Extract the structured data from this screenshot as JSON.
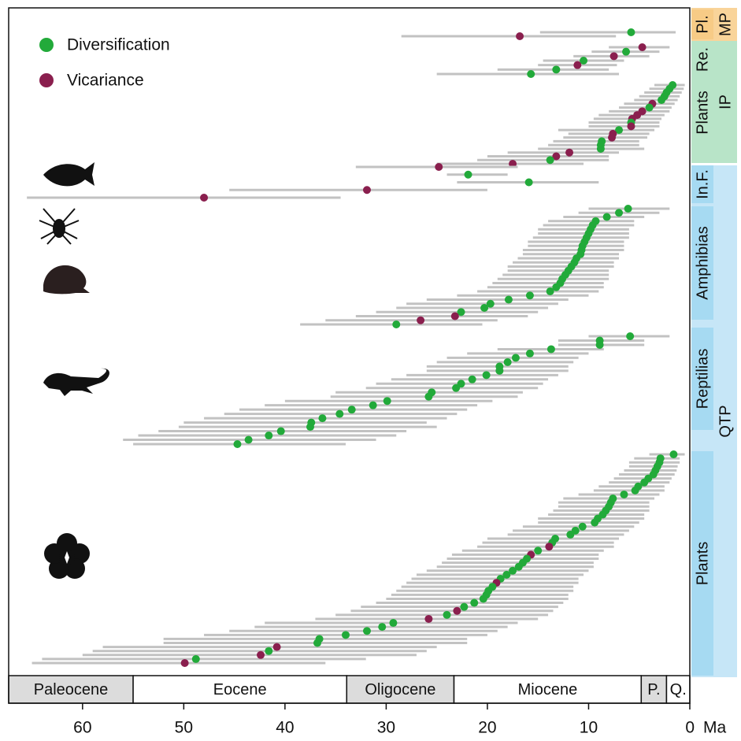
{
  "chart_data": {
    "type": "interval",
    "xlim": [
      67.3,
      0
    ],
    "xticks": [
      60,
      50,
      40,
      30,
      20,
      10,
      0
    ],
    "x_label": "Ma",
    "series": [
      {
        "name": "Diversification",
        "color": "#22aa3a"
      },
      {
        "name": "Vicariance",
        "color": "#8a1f4e"
      }
    ],
    "interval_color": "#c2c2c2",
    "periods": [
      {
        "name": "Paleocene",
        "start": 67.3,
        "end": 55,
        "color": "#dcdcdc"
      },
      {
        "name": "Eocene",
        "start": 55,
        "end": 33.9,
        "color": "#ffffff"
      },
      {
        "name": "Oligocene",
        "start": 33.9,
        "end": 23.3,
        "color": "#dcdcdc"
      },
      {
        "name": "Miocene",
        "start": 23.3,
        "end": 4.8,
        "color": "#ffffff"
      },
      {
        "name": "P.",
        "start": 4.8,
        "end": 2.3,
        "color": "#dcdcdc"
      },
      {
        "name": "Q.",
        "start": 2.3,
        "end": 0,
        "color": "#ffffff"
      }
    ],
    "regions": [
      {
        "name": "MP",
        "color": "#f9d49a"
      },
      {
        "name": "IP",
        "color": "#b8e4c8"
      },
      {
        "name": "QTP",
        "color": "#c6e6f7"
      }
    ],
    "groups": [
      {
        "name": "Pl.",
        "region": 0,
        "color": "#f7cb86",
        "x": [
          5.8,
          16.8
        ],
        "x_max": [
          14.8,
          28.5
        ],
        "x_min": [
          1.4,
          7.3
        ],
        "event": [
          0,
          1
        ]
      },
      {
        "name": "Re.",
        "region": 1,
        "color": "#b8e4c8",
        "x": [
          4.7,
          6.3,
          7.5,
          10.5,
          11.1,
          13.2,
          15.7
        ],
        "x_max": [
          8.0,
          9.7,
          11.5,
          14.5,
          15.0,
          19.0,
          25.0
        ],
        "x_min": [
          2.0,
          3.0,
          4.0,
          6.5,
          7.2,
          8.0,
          7.0
        ],
        "event": [
          1,
          0,
          1,
          0,
          1,
          0,
          0
        ]
      },
      {
        "name": "Plants",
        "region": 1,
        "color": "#b8e4c8",
        "x": [
          1.7,
          2.0,
          2.3,
          2.5,
          2.8,
          3.7,
          4.0,
          4.7,
          5.2,
          5.7,
          5.8,
          5.8,
          7.0,
          7.6,
          7.7,
          8.7,
          8.8,
          8.8,
          11.9,
          13.2,
          13.8,
          17.5
        ],
        "x_max": [
          3.5,
          4.0,
          4.5,
          5.0,
          5.5,
          6.5,
          7.0,
          8.0,
          9.0,
          9.5,
          10.0,
          10.0,
          13.0,
          12.0,
          12.5,
          13.5,
          14.0,
          15.0,
          18.0,
          20.0,
          21.0,
          25.0
        ],
        "x_min": [
          0.5,
          0.6,
          0.8,
          1.0,
          1.2,
          1.5,
          1.8,
          2.0,
          2.5,
          2.8,
          3.0,
          3.0,
          3.5,
          4.0,
          4.2,
          5.0,
          5.0,
          4.5,
          7.0,
          8.0,
          8.0,
          10.5
        ],
        "event": [
          0,
          0,
          0,
          0,
          0,
          1,
          0,
          1,
          1,
          1,
          0,
          1,
          0,
          1,
          1,
          0,
          0,
          0,
          1,
          1,
          0,
          1
        ]
      },
      {
        "name": "In.F.",
        "region": 2,
        "color": "#a6daf2",
        "x": [
          24.8,
          21.9,
          15.9,
          31.9,
          48.0
        ],
        "x_max": [
          33,
          24,
          23,
          45.5,
          65.5
        ],
        "x_min": [
          17,
          18,
          9,
          20,
          34.5
        ],
        "event": [
          1,
          0,
          0,
          1,
          1
        ]
      },
      {
        "name": "Amphibias",
        "region": 2,
        "color": "#a6daf2",
        "x": [
          6.1,
          7.0,
          8.2,
          9.3,
          9.6,
          9.8,
          10.0,
          10.2,
          10.4,
          10.6,
          10.7,
          10.8,
          11.2,
          11.4,
          11.7,
          12.0,
          12.3,
          12.6,
          12.8,
          13.2,
          13.8,
          15.8,
          17.9,
          19.7,
          20.3,
          22.6,
          23.2,
          26.6,
          29.0
        ],
        "x_max": [
          10,
          11,
          12.5,
          14,
          14.5,
          15,
          15,
          15.5,
          16,
          16,
          16.5,
          16.5,
          17,
          17.5,
          18,
          18,
          18.5,
          19,
          19.5,
          20,
          21,
          23,
          26,
          28,
          29,
          31,
          33,
          36,
          38.5
        ],
        "x_min": [
          2,
          3,
          4.5,
          5.5,
          5.5,
          6,
          6,
          6,
          6.5,
          6.5,
          6.5,
          7,
          7,
          7.5,
          7.5,
          8,
          8,
          8,
          8.5,
          8.5,
          9,
          10,
          12,
          13,
          14,
          15,
          16,
          19,
          20.5
        ],
        "event": [
          0,
          0,
          0,
          0,
          0,
          0,
          0,
          0,
          0,
          0,
          0,
          0,
          0,
          0,
          0,
          0,
          0,
          0,
          0,
          0,
          0,
          0,
          0,
          0,
          0,
          0,
          1,
          1,
          0
        ]
      },
      {
        "name": "Reptilias",
        "region": 2,
        "color": "#a6daf2",
        "x": [
          5.9,
          8.9,
          8.9,
          13.7,
          15.8,
          17.2,
          18.0,
          18.8,
          18.8,
          20.1,
          21.5,
          22.6,
          23.1,
          25.5,
          25.8,
          29.9,
          31.3,
          33.4,
          34.6,
          36.3,
          37.4,
          37.5,
          40.4,
          41.6,
          43.6,
          44.7
        ],
        "x_max": [
          10,
          13,
          13,
          19,
          22,
          24,
          25,
          26,
          26,
          28,
          29.5,
          31,
          32,
          35,
          35.5,
          40,
          42,
          44.5,
          46,
          48,
          50,
          50.5,
          52.5,
          54.5,
          56,
          55
        ],
        "x_min": [
          2,
          4.5,
          4.5,
          8.5,
          10,
          11,
          11.5,
          12,
          12,
          13,
          14,
          14.5,
          15,
          16.5,
          17,
          19.5,
          21,
          22,
          23,
          24,
          26,
          25,
          28,
          29,
          31,
          34
        ],
        "event": [
          0,
          0,
          0,
          0,
          0,
          0,
          0,
          0,
          0,
          0,
          0,
          0,
          0,
          0,
          0,
          0,
          0,
          0,
          0,
          0,
          0,
          0,
          0,
          0,
          0,
          0
        ]
      },
      {
        "name": "Plants",
        "region": 2,
        "color": "#a6daf2",
        "x": [
          1.6,
          2.9,
          3.0,
          3.2,
          3.4,
          3.6,
          4.1,
          4.5,
          5.1,
          5.4,
          6.5,
          7.6,
          7.8,
          8.0,
          8.3,
          8.6,
          9.1,
          9.4,
          10.6,
          11.3,
          11.8,
          13.3,
          13.6,
          13.9,
          15.0,
          15.7,
          16.1,
          16.5,
          16.9,
          17.5,
          18.1,
          18.7,
          19.1,
          19.5,
          19.9,
          20.1,
          20.4,
          21.3,
          22.3,
          23.0,
          24.0,
          25.8,
          29.3,
          30.4,
          31.9,
          34.0,
          36.6,
          36.8,
          40.8,
          41.6,
          42.4,
          48.8,
          49.9
        ],
        "x_max": [
          4,
          5.5,
          6,
          6,
          6.5,
          7,
          7.5,
          8,
          9,
          9.5,
          11,
          12.5,
          13,
          13,
          13.5,
          14,
          15,
          15,
          16.5,
          17.5,
          18,
          20,
          20.5,
          21,
          22.5,
          23.5,
          24,
          24.5,
          25,
          26,
          27,
          27.5,
          28,
          28.5,
          29,
          29.5,
          30,
          31,
          32.5,
          33.5,
          35,
          37,
          42,
          43,
          45.5,
          48,
          52,
          52,
          58,
          59,
          60,
          64,
          65
        ],
        "x_min": [
          0.5,
          1,
          1,
          1.2,
          1.3,
          1.5,
          1.8,
          2,
          2.5,
          2.5,
          3,
          3.5,
          4,
          4,
          4,
          4.5,
          4.5,
          5,
          5.5,
          6,
          6.5,
          7,
          7.5,
          7.5,
          8.5,
          9,
          9,
          9.5,
          9.5,
          10,
          10.5,
          11,
          11,
          11.5,
          11.5,
          12,
          12,
          12.5,
          13,
          13.5,
          14,
          15,
          17,
          18,
          19,
          20,
          22,
          22,
          25,
          26,
          27,
          32,
          36
        ],
        "event": [
          0,
          0,
          0,
          0,
          0,
          0,
          0,
          0,
          0,
          0,
          0,
          0,
          0,
          0,
          0,
          0,
          0,
          0,
          0,
          0,
          0,
          0,
          0,
          1,
          0,
          1,
          0,
          0,
          0,
          0,
          0,
          0,
          1,
          0,
          0,
          0,
          0,
          0,
          0,
          1,
          0,
          1,
          0,
          0,
          0,
          0,
          0,
          0,
          1,
          0,
          1,
          0,
          1
        ]
      }
    ]
  }
}
